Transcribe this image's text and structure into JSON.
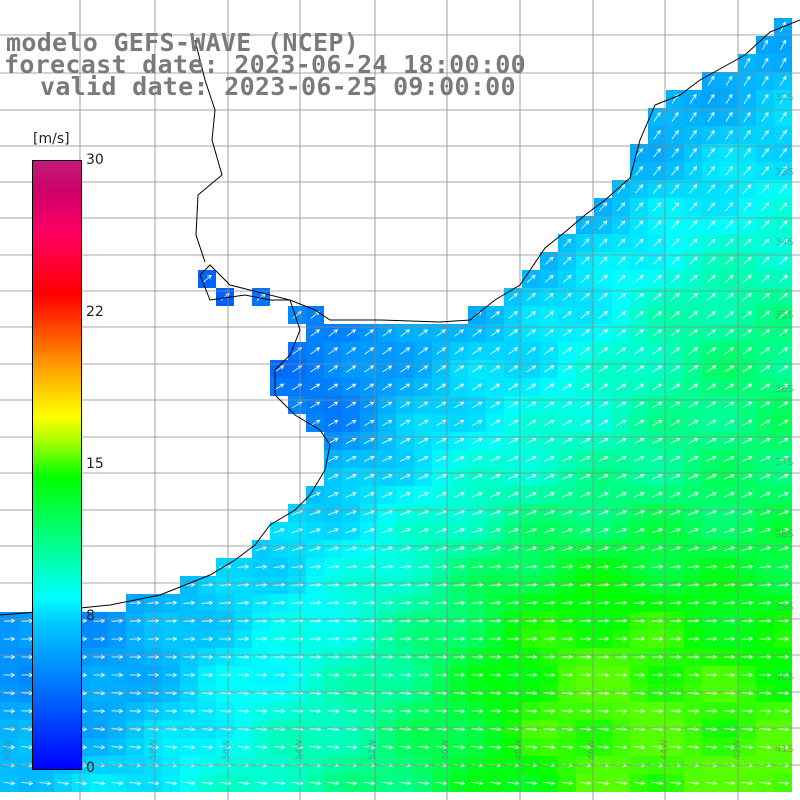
{
  "title": {
    "line1": "modelo GEFS-WAVE (NCEP)",
    "line2": "forecast date: 2023-06-24 18:00:00",
    "line3": "valid date: 2023-06-25 09:00:00"
  },
  "colorbar": {
    "unit": "[m/s]",
    "ticks": [
      "30",
      "22",
      "15",
      "8",
      "0"
    ],
    "colors": [
      "#0000ff",
      "#00ffff",
      "#00ff00",
      "#ffff00",
      "#ff0000",
      "#c01a7a"
    ]
  },
  "map": {
    "land_color": "#ffffff",
    "grid_color": "#8a8a8a",
    "coastline_color": "#000000",
    "arrow_color": "#ffffff",
    "right_labels": [
      "32S",
      "33S",
      "34S",
      "35S",
      "36S",
      "37S",
      "38S",
      "39S",
      "40S",
      "41S"
    ],
    "bottom_labels": [
      "62W",
      "60W",
      "58W",
      "56W",
      "54W",
      "52W",
      "50W",
      "48W",
      "46W",
      "44W",
      "42W"
    ]
  }
}
